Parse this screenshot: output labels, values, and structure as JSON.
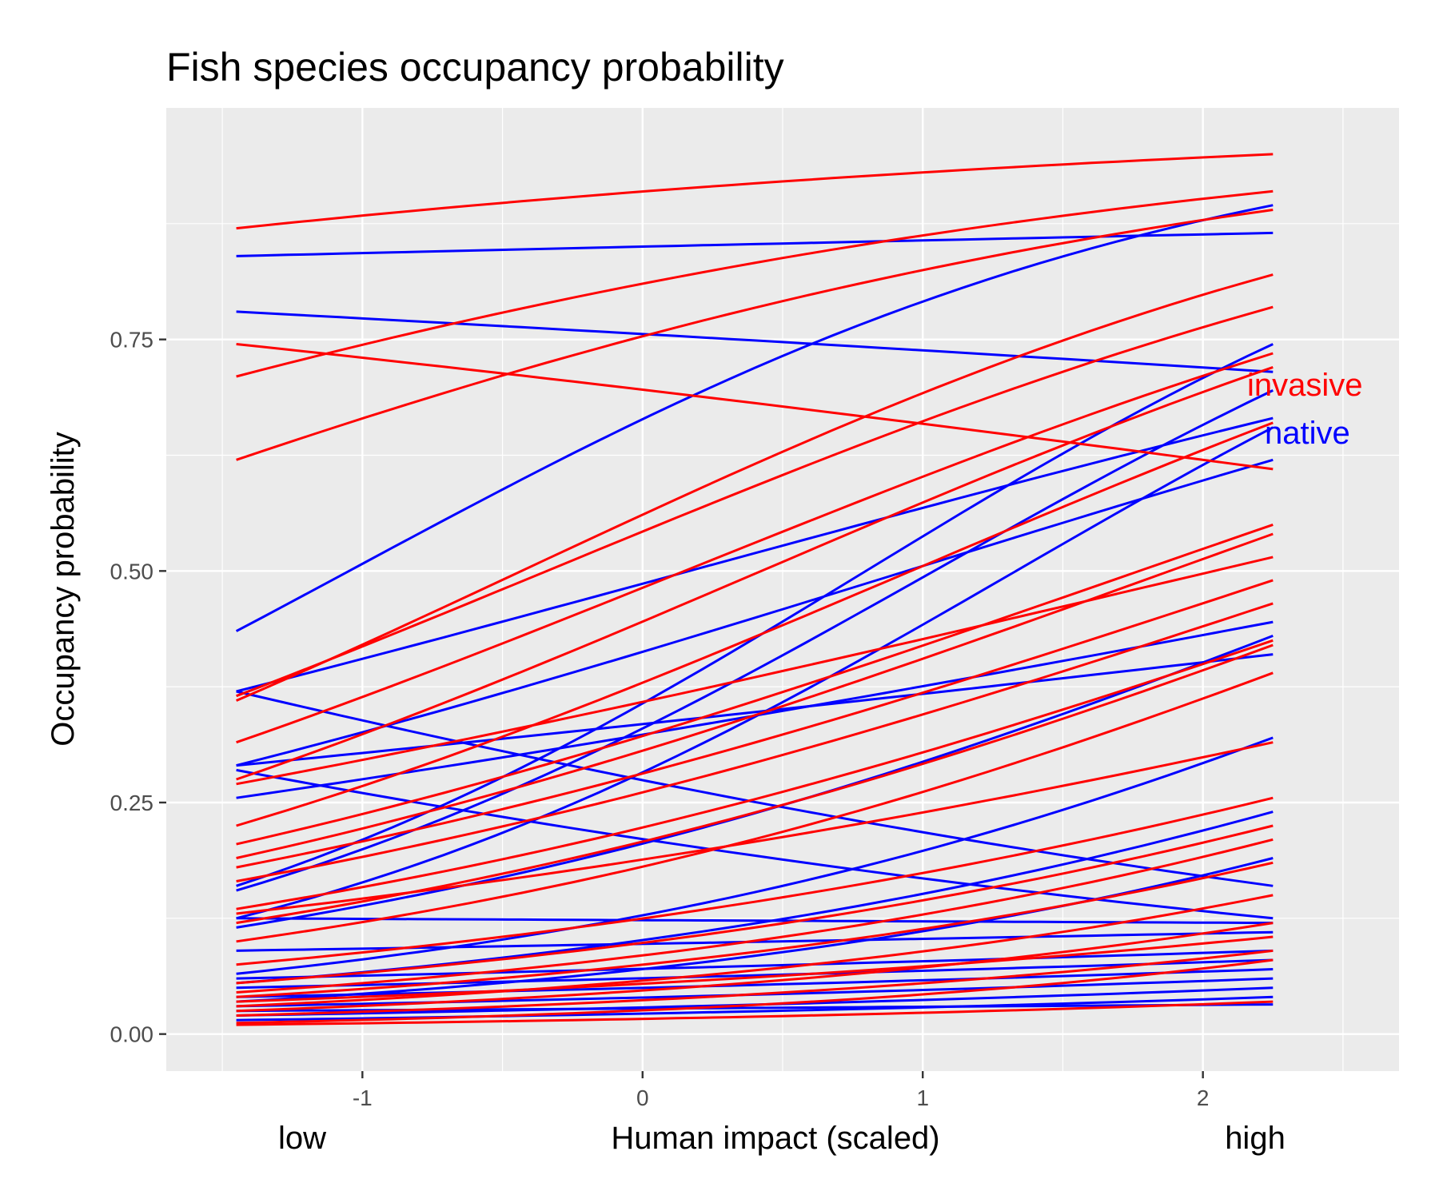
{
  "chart_data": {
    "type": "line",
    "title": "Fish species occupancy probability",
    "xlabel": "Human impact (scaled)",
    "ylabel": "Occupancy probability",
    "x_low_label": "low",
    "x_high_label": "high",
    "xlim": [
      -1.7,
      2.7
    ],
    "ylim": [
      -0.04,
      1.0
    ],
    "x_ticks": [
      -1,
      0,
      1,
      2
    ],
    "x_tick_labels": [
      "-1",
      "0",
      "1",
      "2"
    ],
    "y_ticks": [
      0,
      0.25,
      0.5,
      0.75
    ],
    "y_tick_labels": [
      "0.00",
      "0.25",
      "0.50",
      "0.75"
    ],
    "x_range": [
      -1.45,
      2.25
    ],
    "grid": true,
    "legend": "annotations near right end",
    "annotations": [
      {
        "text": "invasive",
        "color": "#ff0000"
      },
      {
        "text": "native",
        "color": "#0000ff"
      }
    ],
    "groups": [
      {
        "name": "invasive",
        "color": "#ff0000"
      },
      {
        "name": "native",
        "color": "#0000ff"
      }
    ],
    "series": [
      {
        "group": "invasive",
        "y_start": 0.87,
        "y_end": 0.95
      },
      {
        "group": "invasive",
        "y_start": 0.71,
        "y_end": 0.91
      },
      {
        "group": "invasive",
        "y_start": 0.62,
        "y_end": 0.89
      },
      {
        "group": "invasive",
        "y_start": 0.745,
        "y_end": 0.61
      },
      {
        "group": "invasive",
        "y_start": 0.36,
        "y_end": 0.82
      },
      {
        "group": "invasive",
        "y_start": 0.365,
        "y_end": 0.785
      },
      {
        "group": "invasive",
        "y_start": 0.315,
        "y_end": 0.735
      },
      {
        "group": "invasive",
        "y_start": 0.275,
        "y_end": 0.72
      },
      {
        "group": "invasive",
        "y_start": 0.225,
        "y_end": 0.66
      },
      {
        "group": "invasive",
        "y_start": 0.205,
        "y_end": 0.55
      },
      {
        "group": "invasive",
        "y_start": 0.19,
        "y_end": 0.54
      },
      {
        "group": "invasive",
        "y_start": 0.27,
        "y_end": 0.515
      },
      {
        "group": "invasive",
        "y_start": 0.18,
        "y_end": 0.49
      },
      {
        "group": "invasive",
        "y_start": 0.165,
        "y_end": 0.465
      },
      {
        "group": "invasive",
        "y_start": 0.135,
        "y_end": 0.425
      },
      {
        "group": "invasive",
        "y_start": 0.12,
        "y_end": 0.42
      },
      {
        "group": "invasive",
        "y_start": 0.1,
        "y_end": 0.39
      },
      {
        "group": "invasive",
        "y_start": 0.13,
        "y_end": 0.315
      },
      {
        "group": "invasive",
        "y_start": 0.075,
        "y_end": 0.255
      },
      {
        "group": "invasive",
        "y_start": 0.055,
        "y_end": 0.225
      },
      {
        "group": "invasive",
        "y_start": 0.045,
        "y_end": 0.21
      },
      {
        "group": "invasive",
        "y_start": 0.04,
        "y_end": 0.185
      },
      {
        "group": "invasive",
        "y_start": 0.03,
        "y_end": 0.15
      },
      {
        "group": "invasive",
        "y_start": 0.025,
        "y_end": 0.12
      },
      {
        "group": "invasive",
        "y_start": 0.035,
        "y_end": 0.105
      },
      {
        "group": "invasive",
        "y_start": 0.02,
        "y_end": 0.09
      },
      {
        "group": "invasive",
        "y_start": 0.012,
        "y_end": 0.08
      },
      {
        "group": "invasive",
        "y_start": 0.01,
        "y_end": 0.035
      },
      {
        "group": "native",
        "y_start": 0.84,
        "y_end": 0.865
      },
      {
        "group": "native",
        "y_start": 0.78,
        "y_end": 0.715
      },
      {
        "group": "native",
        "y_start": 0.435,
        "y_end": 0.895
      },
      {
        "group": "native",
        "y_start": 0.37,
        "y_end": 0.665
      },
      {
        "group": "native",
        "y_start": 0.29,
        "y_end": 0.62
      },
      {
        "group": "native",
        "y_start": 0.37,
        "y_end": 0.16
      },
      {
        "group": "native",
        "y_start": 0.285,
        "y_end": 0.125
      },
      {
        "group": "native",
        "y_start": 0.255,
        "y_end": 0.445
      },
      {
        "group": "native",
        "y_start": 0.29,
        "y_end": 0.41
      },
      {
        "group": "native",
        "y_start": 0.16,
        "y_end": 0.745
      },
      {
        "group": "native",
        "y_start": 0.155,
        "y_end": 0.695
      },
      {
        "group": "native",
        "y_start": 0.125,
        "y_end": 0.655
      },
      {
        "group": "native",
        "y_start": 0.115,
        "y_end": 0.43
      },
      {
        "group": "native",
        "y_start": 0.065,
        "y_end": 0.32
      },
      {
        "group": "native",
        "y_start": 0.055,
        "y_end": 0.24
      },
      {
        "group": "native",
        "y_start": 0.035,
        "y_end": 0.19
      },
      {
        "group": "native",
        "y_start": 0.125,
        "y_end": 0.12
      },
      {
        "group": "native",
        "y_start": 0.09,
        "y_end": 0.11
      },
      {
        "group": "native",
        "y_start": 0.06,
        "y_end": 0.09
      },
      {
        "group": "native",
        "y_start": 0.05,
        "y_end": 0.08
      },
      {
        "group": "native",
        "y_start": 0.04,
        "y_end": 0.07
      },
      {
        "group": "native",
        "y_start": 0.03,
        "y_end": 0.06
      },
      {
        "group": "native",
        "y_start": 0.02,
        "y_end": 0.05
      },
      {
        "group": "native",
        "y_start": 0.015,
        "y_end": 0.04
      },
      {
        "group": "native",
        "y_start": 0.025,
        "y_end": 0.032
      }
    ]
  }
}
